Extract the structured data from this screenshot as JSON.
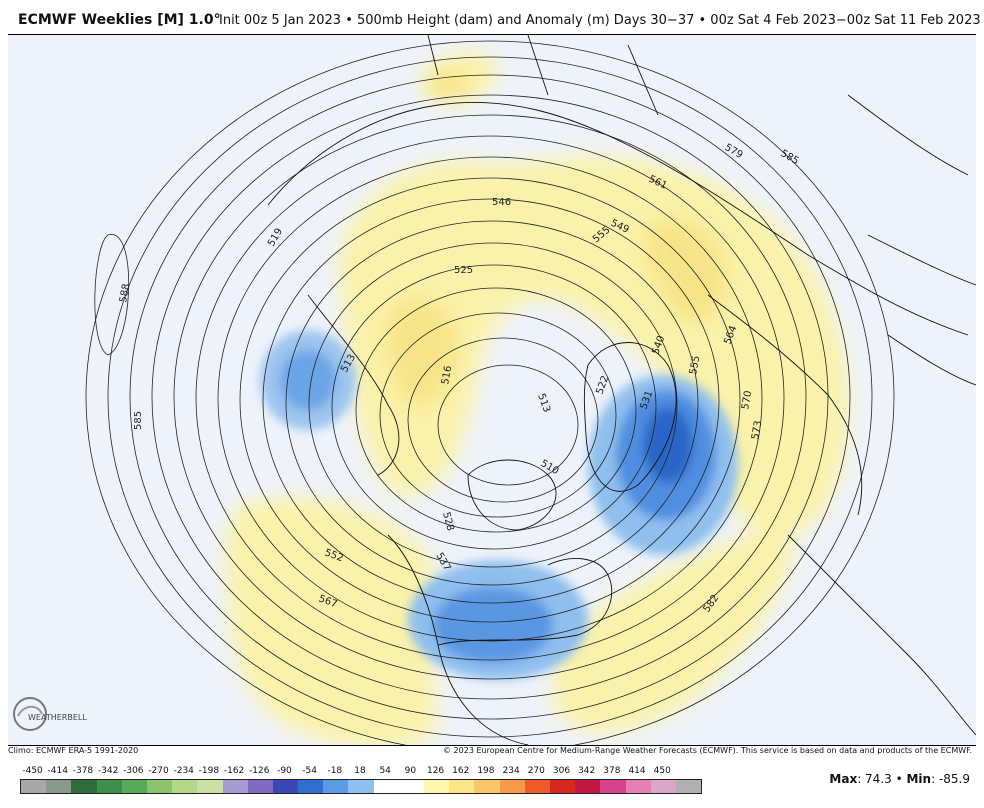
{
  "header": {
    "title": "ECMWF Weeklies [M] 1.0°",
    "subtitle": "Init 00z 5 Jan 2023 • 500mb Height (dam) and Anomaly (m)  Days 30−37 • 00z Sat 4 Feb 2023−00z Sat 11 Feb 2023"
  },
  "map": {
    "projection": "north-polar-stereographic",
    "contour_labels": [
      "588",
      "585",
      "585",
      "579",
      "561",
      "549",
      "546",
      "525",
      "516",
      "513",
      "513",
      "510",
      "522",
      "531",
      "540",
      "564",
      "555",
      "570",
      "573",
      "582",
      "567",
      "552",
      "537",
      "528",
      "519",
      "555"
    ],
    "features": [
      "warm-anomaly-north-america-west",
      "warm-anomaly-eurasia",
      "cold-anomaly-greenland-atlantic",
      "cold-anomaly-central-north-america",
      "cold-anomaly-alaska-pacific",
      "warm-anomaly-pacific",
      "warm-anomaly-atlantic-southeast"
    ]
  },
  "footer": {
    "climo": "Climo: ECMWF ERA-5 1991-2020",
    "copyright": "© 2023 European Centre for Medium-Range Weather Forecasts (ECMWF). This service is based on data and products of the ECMWF."
  },
  "colorbar": {
    "labels": [
      "-450",
      "-414",
      "-378",
      "-342",
      "-306",
      "-270",
      "-234",
      "-198",
      "-162",
      "-126",
      "-90",
      "-54",
      "-18",
      "18",
      "54",
      "90",
      "126",
      "162",
      "198",
      "234",
      "270",
      "306",
      "342",
      "378",
      "414",
      "450"
    ],
    "colors": [
      "#a8a8a8",
      "#8a9a8a",
      "#2f6b3c",
      "#3f8e4a",
      "#5aa85a",
      "#8cc46e",
      "#b3d889",
      "#c9e2a4",
      "#a79ad0",
      "#7f6cc0",
      "#3b46b7",
      "#2e6fd0",
      "#5a9be3",
      "#8fc0ee",
      "#ffffff",
      "#ffffff",
      "#fff6b0",
      "#fde58a",
      "#fbc56a",
      "#f99a4a",
      "#ef5a2a",
      "#d8281c",
      "#c21846",
      "#d6438a",
      "#e57fb4",
      "#d9a8c8",
      "#b0b0b0"
    ]
  },
  "stats": {
    "max_label": "Max",
    "max_value": ": 74.3 • ",
    "min_label": "Min",
    "min_value": ": -85.9"
  },
  "logo": {
    "text": "WEATHERBELL"
  }
}
